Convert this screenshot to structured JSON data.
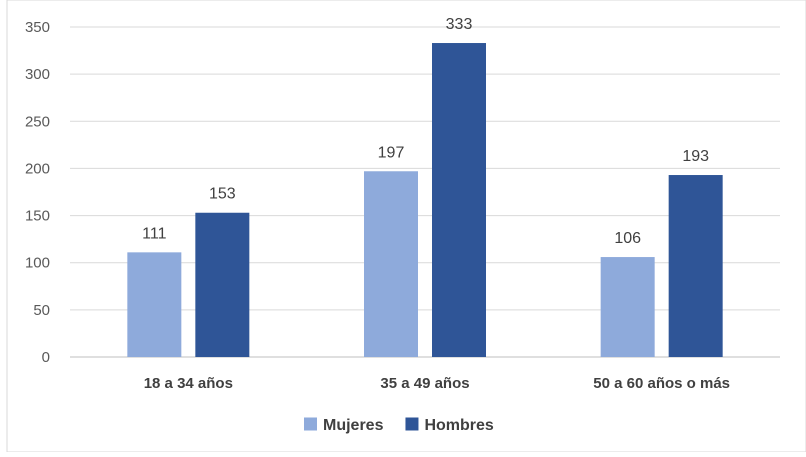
{
  "chart_data": {
    "type": "bar",
    "title": "",
    "xlabel": "",
    "ylabel": "",
    "categories": [
      "18 a 34 años",
      "35 a 49 años",
      "50 a 60 años o más"
    ],
    "series": [
      {
        "name": "Mujeres",
        "values": [
          111,
          197,
          106
        ],
        "color": "#8eaadb"
      },
      {
        "name": "Hombres",
        "values": [
          153,
          333,
          193
        ],
        "color": "#2f5597"
      }
    ],
    "ylim": [
      0,
      350
    ],
    "yticks": [
      0,
      50,
      100,
      150,
      200,
      250,
      300,
      350
    ],
    "grid": true,
    "legend": "bottom",
    "data_labels": true
  }
}
